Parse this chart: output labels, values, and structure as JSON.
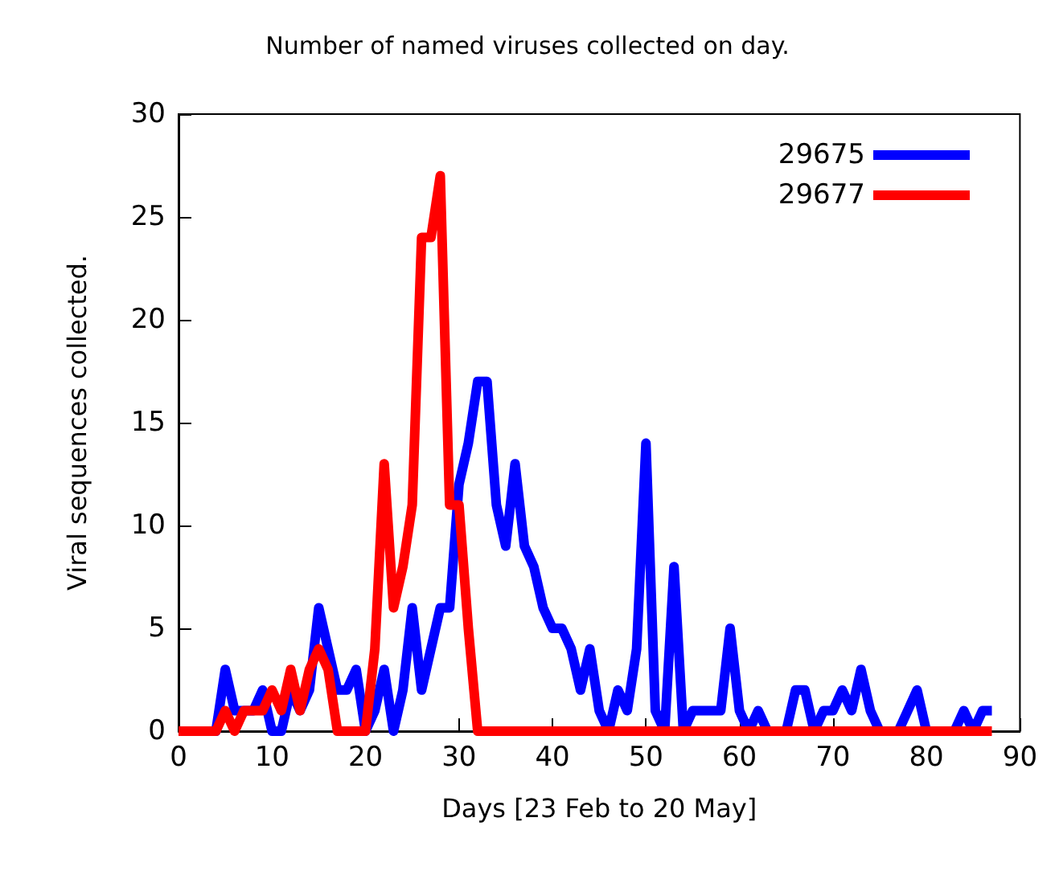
{
  "chart_data": {
    "type": "line",
    "title": "Number of named viruses collected on day.",
    "xlabel": "Days [23 Feb to 20 May]",
    "ylabel": "Viral sequences collected.",
    "x": [
      0,
      1,
      2,
      3,
      4,
      5,
      6,
      7,
      8,
      9,
      10,
      11,
      12,
      13,
      14,
      15,
      16,
      17,
      18,
      19,
      20,
      21,
      22,
      23,
      24,
      25,
      26,
      27,
      28,
      29,
      30,
      31,
      32,
      33,
      34,
      35,
      36,
      37,
      38,
      39,
      40,
      41,
      42,
      43,
      44,
      45,
      46,
      47,
      48,
      49,
      50,
      51,
      52,
      53,
      54,
      55,
      56,
      57,
      58,
      59,
      60,
      61,
      62,
      63,
      64,
      65,
      66,
      67,
      68,
      69,
      70,
      71,
      72,
      73,
      74,
      75,
      76,
      77,
      78,
      79,
      80,
      81,
      82,
      83,
      84,
      85,
      86,
      87
    ],
    "series": [
      {
        "name": "29675",
        "color": "#0000ff",
        "values": [
          null,
          null,
          0,
          0,
          0,
          3,
          1,
          1,
          1,
          2,
          0,
          0,
          2,
          1,
          2,
          6,
          4,
          2,
          2,
          3,
          0,
          1,
          3,
          0,
          2,
          6,
          2,
          4,
          6,
          6,
          12,
          14,
          17,
          17,
          11,
          9,
          13,
          9,
          8,
          6,
          5,
          5,
          4,
          2,
          4,
          1,
          0,
          2,
          1,
          4,
          14,
          1,
          0,
          8,
          0,
          1,
          1,
          1,
          1,
          5,
          1,
          0,
          1,
          0,
          0,
          0,
          2,
          2,
          0,
          1,
          1,
          2,
          1,
          3,
          1,
          0,
          0,
          0,
          1,
          2,
          0,
          0,
          0,
          0,
          1,
          0,
          1,
          1
        ]
      },
      {
        "name": "29677",
        "color": "#ff0000",
        "values": [
          0,
          0,
          0,
          0,
          0,
          1,
          0,
          1,
          1,
          1,
          2,
          1,
          3,
          1,
          3,
          4,
          3,
          0,
          0,
          0,
          0,
          4,
          13,
          6,
          8,
          11,
          24,
          24,
          27,
          11,
          11,
          5,
          0,
          0,
          0,
          0,
          0,
          0,
          0,
          0,
          0,
          0,
          0,
          0,
          0,
          0,
          0,
          0,
          0,
          0,
          0,
          0,
          0,
          0,
          0,
          0,
          0,
          0,
          0,
          0,
          0,
          0,
          0,
          0,
          0,
          0,
          0,
          0,
          0,
          0,
          0,
          0,
          0,
          0,
          0,
          0,
          0,
          0,
          0,
          0,
          0,
          0,
          0,
          0,
          0,
          0,
          0,
          0
        ]
      }
    ],
    "xlim": [
      0,
      90
    ],
    "xticks": [
      0,
      10,
      20,
      30,
      40,
      50,
      60,
      70,
      80,
      90
    ],
    "ylim": [
      0,
      30
    ],
    "yticks": [
      0,
      5,
      10,
      15,
      20,
      25,
      30
    ],
    "grid": false,
    "legend": "top right",
    "marker": "none",
    "line_style": "solid"
  }
}
